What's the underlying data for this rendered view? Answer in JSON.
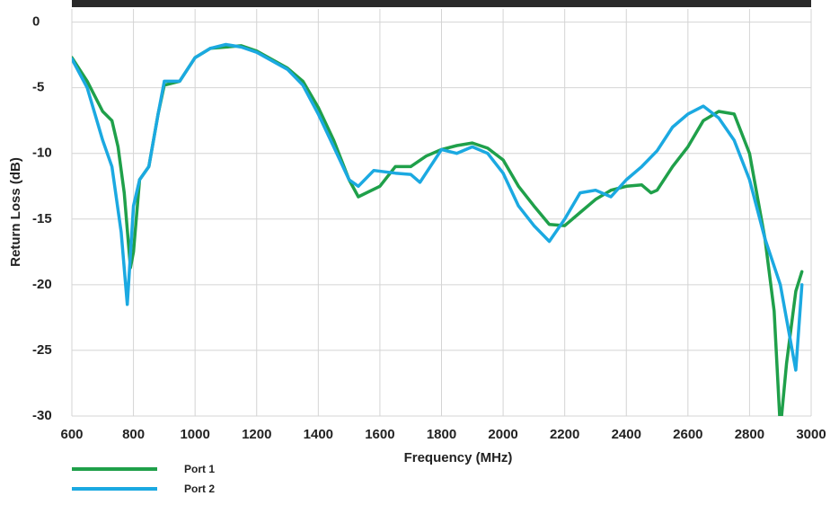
{
  "chart_data": {
    "type": "line",
    "x_label": "Frequency (MHz)",
    "y_label": "Return Loss (dB)",
    "xlim": [
      600,
      3000
    ],
    "ylim": [
      -30,
      1
    ],
    "xticks": [
      600,
      800,
      1000,
      1200,
      1400,
      1600,
      1800,
      2000,
      2200,
      2400,
      2600,
      2800,
      3000
    ],
    "yticks": [
      0,
      -5,
      -10,
      -15,
      -20,
      -25,
      -30
    ],
    "grid": true,
    "legend": "bottom-left",
    "series": [
      {
        "name": "Port 1",
        "color": "#1fa04a",
        "x": [
          600,
          650,
          700,
          730,
          750,
          770,
          790,
          800,
          820,
          850,
          880,
          900,
          950,
          1000,
          1050,
          1100,
          1150,
          1200,
          1300,
          1350,
          1400,
          1450,
          1500,
          1530,
          1600,
          1650,
          1700,
          1750,
          1800,
          1850,
          1900,
          1950,
          2000,
          2050,
          2100,
          2150,
          2200,
          2250,
          2300,
          2350,
          2400,
          2450,
          2480,
          2500,
          2550,
          2600,
          2650,
          2700,
          2750,
          2800,
          2850,
          2880,
          2900,
          2920,
          2950,
          2970
        ],
        "values": [
          -2.7,
          -4.5,
          -6.8,
          -7.5,
          -9.5,
          -13,
          -18.7,
          -17.5,
          -12,
          -11,
          -7,
          -4.8,
          -4.5,
          -2.7,
          -2.0,
          -1.9,
          -1.8,
          -2.2,
          -3.5,
          -4.5,
          -6.5,
          -9,
          -12,
          -13.3,
          -12.5,
          -11,
          -11,
          -10.2,
          -9.7,
          -9.4,
          -9.2,
          -9.6,
          -10.5,
          -12.5,
          -14,
          -15.4,
          -15.5,
          -14.5,
          -13.5,
          -12.8,
          -12.5,
          -12.4,
          -13,
          -12.8,
          -11,
          -9.5,
          -7.5,
          -6.8,
          -7,
          -10,
          -16.5,
          -22,
          -31,
          -26,
          -20.5,
          -19
        ]
      },
      {
        "name": "Port 2",
        "color": "#1ba9e1",
        "x": [
          600,
          650,
          700,
          730,
          760,
          780,
          800,
          820,
          850,
          880,
          900,
          950,
          1000,
          1050,
          1100,
          1150,
          1200,
          1300,
          1350,
          1400,
          1450,
          1500,
          1530,
          1580,
          1650,
          1700,
          1730,
          1800,
          1850,
          1900,
          1950,
          2000,
          2050,
          2100,
          2150,
          2200,
          2250,
          2300,
          2350,
          2400,
          2450,
          2500,
          2550,
          2600,
          2650,
          2700,
          2750,
          2800,
          2850,
          2900,
          2950,
          2970
        ],
        "values": [
          -2.8,
          -5,
          -9,
          -11,
          -16,
          -21.5,
          -14,
          -12,
          -11,
          -7,
          -4.5,
          -4.5,
          -2.7,
          -2.0,
          -1.7,
          -1.9,
          -2.3,
          -3.6,
          -4.8,
          -7,
          -9.5,
          -12,
          -12.5,
          -11.3,
          -11.5,
          -11.6,
          -12.2,
          -9.7,
          -10,
          -9.5,
          -10,
          -11.5,
          -14,
          -15.5,
          -16.7,
          -15,
          -13,
          -12.8,
          -13.3,
          -12,
          -11,
          -9.8,
          -8,
          -7,
          -6.4,
          -7.3,
          -9,
          -12,
          -16.5,
          -20,
          -26.5,
          -20
        ]
      }
    ]
  }
}
